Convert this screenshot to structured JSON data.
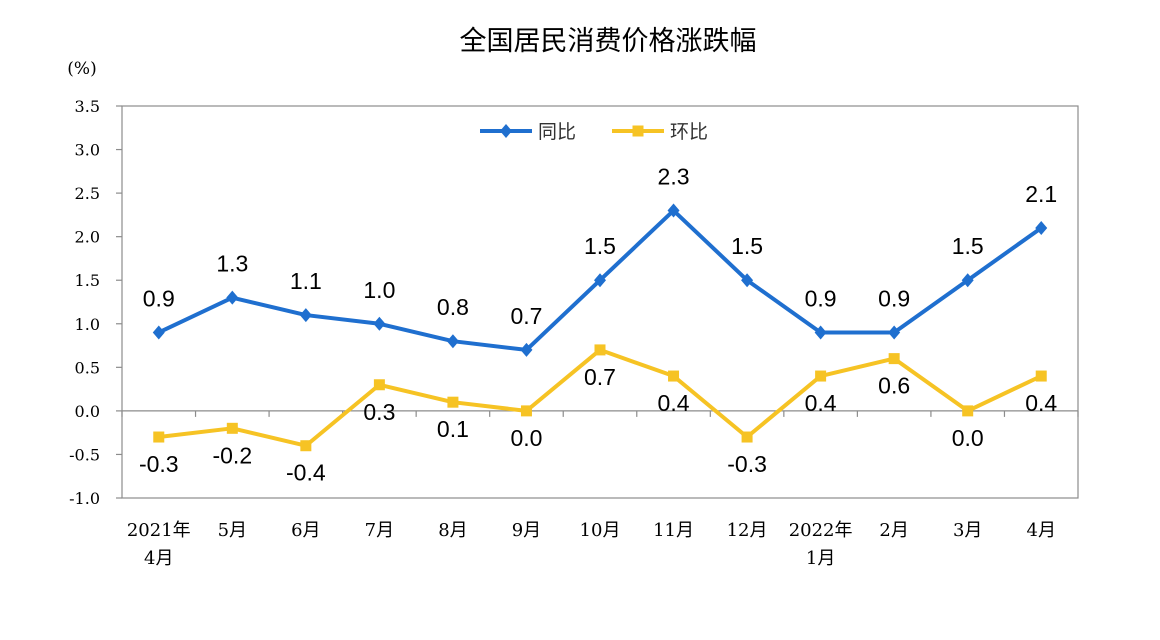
{
  "chart_data": {
    "type": "line",
    "title": "全国居民消费价格涨跌幅",
    "ylabel": "(%)",
    "xlabel": "",
    "ylim": [
      -1.0,
      3.5
    ],
    "yticks": [
      "3.5",
      "3.0",
      "2.5",
      "2.0",
      "1.5",
      "1.0",
      "0.5",
      "0.0",
      "-0.5",
      "-1.0"
    ],
    "grid": false,
    "legend_position": "top-center",
    "categories": [
      [
        "2021年",
        "4月"
      ],
      [
        "5月"
      ],
      [
        "6月"
      ],
      [
        "7月"
      ],
      [
        "8月"
      ],
      [
        "9月"
      ],
      [
        "10月"
      ],
      [
        "11月"
      ],
      [
        "12月"
      ],
      [
        "2022年",
        "1月"
      ],
      [
        "2月"
      ],
      [
        "3月"
      ],
      [
        "4月"
      ]
    ],
    "series": [
      {
        "name": "同比",
        "color": "#1f6fcf",
        "marker": "diamond",
        "values": [
          0.9,
          1.3,
          1.1,
          1.0,
          0.8,
          0.7,
          1.5,
          2.3,
          1.5,
          0.9,
          0.9,
          1.5,
          2.1
        ],
        "labels": [
          "0.9",
          "1.3",
          "1.1",
          "1.0",
          "0.8",
          "0.7",
          "1.5",
          "2.3",
          "1.5",
          "0.9",
          "0.9",
          "1.5",
          "2.1"
        ]
      },
      {
        "name": "环比",
        "color": "#f6c324",
        "marker": "square",
        "values": [
          -0.3,
          -0.2,
          -0.4,
          0.3,
          0.1,
          0.0,
          0.7,
          0.4,
          -0.3,
          0.4,
          0.6,
          0.0,
          0.4
        ],
        "labels": [
          "-0.3",
          "-0.2",
          "-0.4",
          "0.3",
          "0.1",
          "0.0",
          "0.7",
          "0.4",
          "-0.3",
          "0.4",
          "0.6",
          "0.0",
          "0.4"
        ]
      }
    ]
  }
}
